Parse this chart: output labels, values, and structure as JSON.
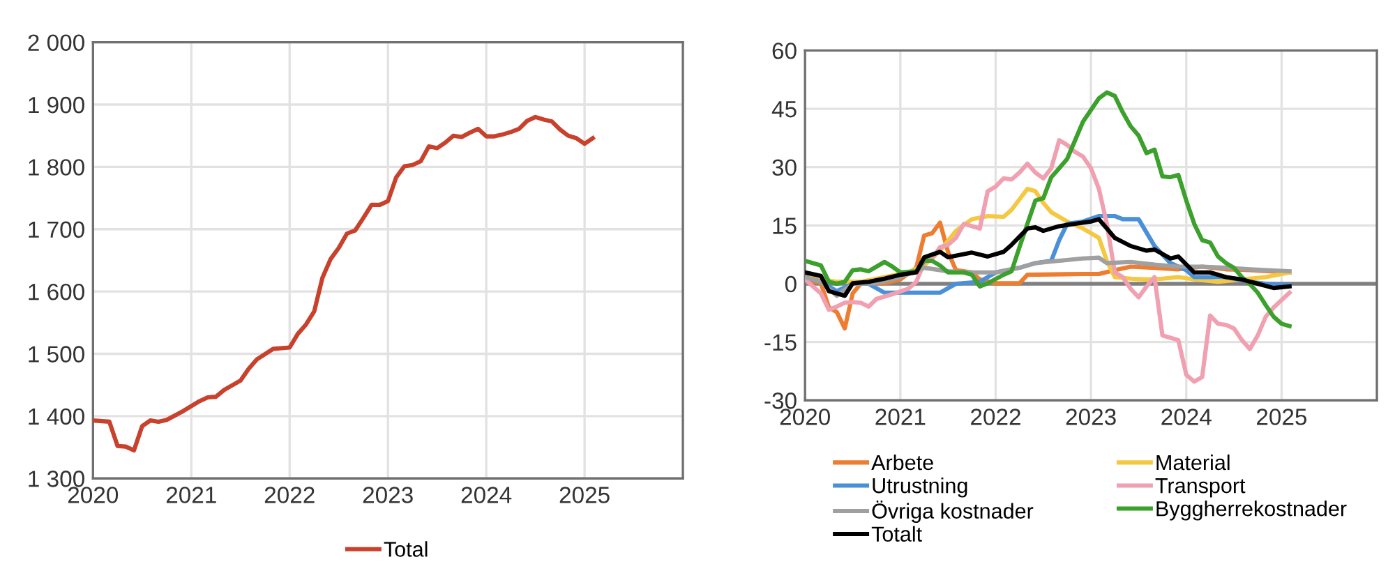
{
  "chart_data": [
    {
      "type": "line",
      "xlim": [
        "2020",
        "2026"
      ],
      "xticks": [
        "2020",
        "2021",
        "2022",
        "2023",
        "2024",
        "2025"
      ],
      "ylim": [
        1300,
        2000
      ],
      "yticks": [
        {
          "value": 1300,
          "label": "1 300"
        },
        {
          "value": 1400,
          "label": "1 400"
        },
        {
          "value": 1500,
          "label": "1 500"
        },
        {
          "value": 1600,
          "label": "1 600"
        },
        {
          "value": 1700,
          "label": "1 700"
        },
        {
          "value": 1800,
          "label": "1 800"
        },
        {
          "value": 1900,
          "label": "1 900"
        },
        {
          "value": 2000,
          "label": "2 000"
        }
      ],
      "grid": true,
      "legend": "bottom",
      "marker": "none",
      "line_style": "solid",
      "series": [
        {
          "name": "Total",
          "color": "#c8412d",
          "x": [
            "2020-01",
            "2020-03",
            "2020-04",
            "2020-05",
            "2020-06",
            "2020-07",
            "2020-08",
            "2020-09",
            "2020-10",
            "2020-12",
            "2021-02",
            "2021-03",
            "2021-04",
            "2021-05",
            "2021-07",
            "2021-08",
            "2021-09",
            "2021-11",
            "2022-01",
            "2022-02",
            "2022-03",
            "2022-04",
            "2022-05",
            "2022-06",
            "2022-07",
            "2022-08",
            "2022-09",
            "2022-10",
            "2022-11",
            "2022-12",
            "2023-01",
            "2023-02",
            "2023-03",
            "2023-04",
            "2023-05",
            "2023-06",
            "2023-07",
            "2023-08",
            "2023-09",
            "2023-10",
            "2023-11",
            "2023-12",
            "2024-01",
            "2024-02",
            "2024-03",
            "2024-04",
            "2024-05",
            "2024-06",
            "2024-07",
            "2024-08",
            "2024-09",
            "2024-10",
            "2024-11",
            "2024-12",
            "2025-01",
            "2025-02"
          ],
          "values": [
            1393,
            1391,
            1352,
            1351,
            1345,
            1384,
            1393,
            1391,
            1394,
            1408,
            1424,
            1430,
            1431,
            1442,
            1457,
            1476,
            1491,
            1508,
            1510,
            1532,
            1547,
            1568,
            1622,
            1652,
            1670,
            1693,
            1698,
            1718,
            1739,
            1739,
            1745,
            1783,
            1801,
            1803,
            1809,
            1833,
            1830,
            1839,
            1850,
            1848,
            1855,
            1861,
            1849,
            1849,
            1852,
            1856,
            1861,
            1874,
            1880,
            1876,
            1873,
            1860,
            1850,
            1846,
            1837,
            1846
          ]
        }
      ]
    },
    {
      "type": "line",
      "xlim": [
        "2020",
        "2026"
      ],
      "xticks": [
        "2020",
        "2021",
        "2022",
        "2023",
        "2024",
        "2025"
      ],
      "ylim": [
        -30,
        60
      ],
      "yticks": [
        -30,
        -15,
        0,
        15,
        30,
        45,
        60
      ],
      "grid": true,
      "legend": "bottom",
      "marker": "none",
      "line_style": "solid",
      "ref_lines": [
        {
          "axis": "y",
          "value": 0,
          "color": "#808080"
        }
      ],
      "series": [
        {
          "name": "Arbete",
          "color": "#ed7d31",
          "x": [
            "2020-01",
            "2020-03",
            "2020-04",
            "2020-05",
            "2020-06",
            "2020-07",
            "2020-08",
            "2020-11",
            "2021-01",
            "2021-03",
            "2021-04",
            "2021-05",
            "2021-06",
            "2021-07",
            "2021-08",
            "2021-10",
            "2021-11",
            "2022-01",
            "2022-04",
            "2022-05",
            "2022-12",
            "2023-02",
            "2023-04",
            "2023-06",
            "2023-09",
            "2023-12",
            "2024-03",
            "2024-06",
            "2024-09",
            "2025-02"
          ],
          "values": [
            1.3,
            0.1,
            -6.1,
            -7.3,
            -11.5,
            -2.5,
            0,
            0.1,
            1.1,
            4.1,
            12.4,
            13,
            15.7,
            8.2,
            3.5,
            2.9,
            1.1,
            0.1,
            0.1,
            2.3,
            2.5,
            2.5,
            3.5,
            4.4,
            4.1,
            3.7,
            4.4,
            3.7,
            3.5,
            2.9
          ]
        },
        {
          "name": "Material",
          "color": "#f5c842",
          "x": [
            "2020-01",
            "2020-03",
            "2020-05",
            "2020-08",
            "2020-11",
            "2021-02",
            "2021-04",
            "2021-06",
            "2021-08",
            "2021-10",
            "2021-12",
            "2022-02",
            "2022-03",
            "2022-05",
            "2022-06",
            "2022-07",
            "2022-08",
            "2022-10",
            "2022-12",
            "2023-02",
            "2023-03",
            "2023-04",
            "2023-06",
            "2023-08",
            "2023-10",
            "2023-12",
            "2024-02",
            "2024-05",
            "2024-08",
            "2024-11",
            "2025-02"
          ],
          "values": [
            1.7,
            1.1,
            0.5,
            0.5,
            1.7,
            2.9,
            4.7,
            8.5,
            13.6,
            16.6,
            17.4,
            17.2,
            19,
            24.4,
            23.8,
            20.8,
            18.4,
            16,
            14.2,
            11.8,
            5.9,
            1.7,
            1.3,
            1.1,
            1.3,
            1.7,
            1.1,
            0.5,
            1.1,
            1.7,
            2.9
          ]
        },
        {
          "name": "Utrustning",
          "color": "#4a90d9",
          "x": [
            "2020-01",
            "2020-03",
            "2020-05",
            "2020-07",
            "2020-09",
            "2020-11",
            "2021-02",
            "2021-06",
            "2021-08",
            "2021-11",
            "2022-01",
            "2022-04",
            "2022-06",
            "2022-08",
            "2022-09",
            "2022-10",
            "2022-12",
            "2023-02",
            "2023-04",
            "2023-05",
            "2023-07",
            "2023-09",
            "2023-11",
            "2024-01",
            "2024-02",
            "2024-06",
            "2024-09",
            "2024-11",
            "2025-02"
          ],
          "values": [
            1.7,
            0.5,
            -1.9,
            0,
            0,
            -2.3,
            -2.3,
            -2.3,
            0,
            0.5,
            2.9,
            4.1,
            5.3,
            5.9,
            11.2,
            15.4,
            16,
            17.4,
            17.4,
            16.6,
            16.6,
            9.7,
            5.3,
            3.5,
            1.7,
            1.7,
            0.5,
            0,
            -0.4
          ]
        },
        {
          "name": "Transport",
          "color": "#f0a0b0",
          "x": [
            "2020-01",
            "2020-03",
            "2020-04",
            "2020-05",
            "2020-06",
            "2020-07",
            "2020-08",
            "2020-09",
            "2020-10",
            "2020-12",
            "2021-02",
            "2021-03",
            "2021-04",
            "2021-05",
            "2021-06",
            "2021-07",
            "2021-08",
            "2021-09",
            "2021-10",
            "2021-11",
            "2021-12",
            "2022-01",
            "2022-02",
            "2022-03",
            "2022-04",
            "2022-05",
            "2022-06",
            "2022-07",
            "2022-08",
            "2022-09",
            "2022-10",
            "2022-11",
            "2022-12",
            "2023-01",
            "2023-02",
            "2023-03",
            "2023-04",
            "2023-05",
            "2023-06",
            "2023-07",
            "2023-08",
            "2023-09",
            "2023-10",
            "2023-11",
            "2023-12",
            "2024-01",
            "2024-02",
            "2024-03",
            "2024-04",
            "2024-05",
            "2024-06",
            "2024-07",
            "2024-08",
            "2024-09",
            "2024-10",
            "2024-11",
            "2024-12",
            "2025-02"
          ],
          "values": [
            1.1,
            -2.5,
            -6.7,
            -5.9,
            -4.9,
            -4.7,
            -4.9,
            -5.9,
            -3.9,
            -2.7,
            -1.3,
            0.5,
            5.3,
            6.5,
            9.4,
            10,
            11.8,
            15.4,
            14.8,
            14.2,
            23.8,
            25,
            27.1,
            26.8,
            28.6,
            30.9,
            28.6,
            27.1,
            29.7,
            36.9,
            35.7,
            33.9,
            32.7,
            29.7,
            24.4,
            15.4,
            2.9,
            1.7,
            -1.3,
            -3.5,
            -0.7,
            1.7,
            -13.3,
            -13.9,
            -14.5,
            -23.4,
            -25.2,
            -24,
            -8.2,
            -10.3,
            -10.6,
            -11.5,
            -14.5,
            -16.8,
            -13.3,
            -8.5,
            -6.1,
            -2.3
          ]
        },
        {
          "name": "Övriga kostnader",
          "color": "#a0a0a0",
          "x": [
            "2020-01",
            "2020-03",
            "2020-05",
            "2020-07",
            "2020-10",
            "2021-01",
            "2021-04",
            "2021-07",
            "2021-10",
            "2022-01",
            "2022-04",
            "2022-06",
            "2022-09",
            "2022-12",
            "2023-02",
            "2023-03",
            "2023-06",
            "2023-09",
            "2023-12",
            "2024-03",
            "2024-06",
            "2024-09",
            "2025-02"
          ],
          "values": [
            1.7,
            0.5,
            -3.1,
            0,
            0.1,
            1.7,
            4.1,
            3.2,
            2.9,
            2.9,
            4.1,
            5.3,
            5.9,
            6.5,
            6.7,
            5.3,
            5.6,
            4.9,
            4.4,
            4.4,
            4.1,
            3.7,
            3.2
          ]
        },
        {
          "name": "Byggherrekostnader",
          "color": "#3ca02c",
          "x": [
            "2020-01",
            "2020-03",
            "2020-04",
            "2020-05",
            "2020-06",
            "2020-07",
            "2020-08",
            "2020-09",
            "2020-11",
            "2020-12",
            "2021-01",
            "2021-03",
            "2021-04",
            "2021-05",
            "2021-06",
            "2021-07",
            "2021-09",
            "2021-10",
            "2021-11",
            "2021-12",
            "2022-02",
            "2022-03",
            "2022-04",
            "2022-05",
            "2022-06",
            "2022-07",
            "2022-08",
            "2022-09",
            "2022-10",
            "2022-11",
            "2022-12",
            "2023-02",
            "2023-03",
            "2023-04",
            "2023-05",
            "2023-06",
            "2023-07",
            "2023-08",
            "2023-09",
            "2023-10",
            "2023-11",
            "2023-12",
            "2024-01",
            "2024-02",
            "2024-03",
            "2024-04",
            "2024-05",
            "2024-06",
            "2024-07",
            "2024-08",
            "2024-09",
            "2024-10",
            "2024-11",
            "2024-12",
            "2025-01",
            "2025-02"
          ],
          "values": [
            5.9,
            4.7,
            0.5,
            0,
            0.5,
            3.5,
            3.7,
            3.2,
            5.6,
            4.4,
            2.9,
            3.2,
            5.9,
            5.9,
            4.7,
            2.9,
            2.9,
            2.3,
            -0.7,
            0.1,
            2.3,
            3.2,
            9.4,
            15.4,
            21.4,
            22,
            27.4,
            29.7,
            32.1,
            36.9,
            41.7,
            47.7,
            49.2,
            48.3,
            44.1,
            40.5,
            38.1,
            33.6,
            34.5,
            27.6,
            27.4,
            28,
            21.4,
            15.4,
            11.2,
            10.6,
            7,
            5.3,
            4.1,
            1.7,
            -0.1,
            -2.3,
            -5.5,
            -8.5,
            -10.3,
            -10.9
          ]
        },
        {
          "name": "Totalt",
          "color": "#000000",
          "x": [
            "2020-01",
            "2020-03",
            "2020-04",
            "2020-06",
            "2020-07",
            "2020-09",
            "2020-11",
            "2021-01",
            "2021-03",
            "2021-04",
            "2021-06",
            "2021-07",
            "2021-09",
            "2021-10",
            "2021-12",
            "2022-02",
            "2022-03",
            "2022-05",
            "2022-06",
            "2022-07",
            "2022-09",
            "2022-11",
            "2023-01",
            "2023-02",
            "2023-03",
            "2023-04",
            "2023-06",
            "2023-08",
            "2023-09",
            "2023-11",
            "2023-12",
            "2024-02",
            "2024-04",
            "2024-06",
            "2024-08",
            "2024-10",
            "2024-12",
            "2025-02"
          ],
          "values": [
            2.9,
            2,
            -1.9,
            -3.1,
            0.1,
            0.5,
            1.3,
            2.3,
            2.9,
            6.8,
            8.2,
            6.8,
            7.6,
            8,
            7,
            8.2,
            10,
            14.2,
            14.5,
            13.6,
            14.8,
            15.4,
            16,
            16.6,
            14.2,
            11.8,
            9.7,
            8.5,
            8.8,
            6.5,
            7,
            2.9,
            2.9,
            1.7,
            1.1,
            0,
            -1.1,
            -0.7
          ]
        }
      ]
    }
  ]
}
